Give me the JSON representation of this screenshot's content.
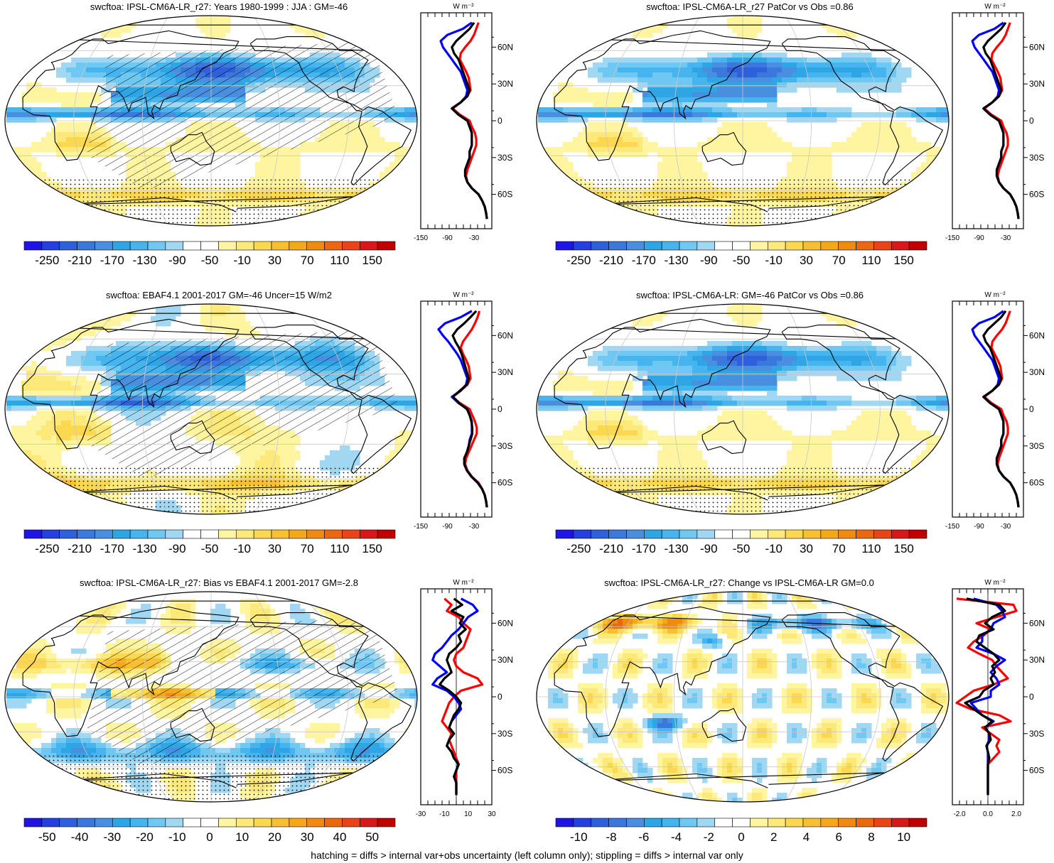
{
  "footer": "hatching = diffs > internal var+obs uncertainty (left column only); stippling = diffs > internal var only",
  "zonal_unit": "W m⁻²",
  "lat_ticks": [
    "60N",
    "30N",
    "0",
    "30S",
    "60S"
  ],
  "colors": {
    "model_line": "#000000",
    "obs_line": "#ff0000",
    "ref_line": "#0000ff",
    "coast": "#000000",
    "grid": "#c8c8c8"
  },
  "colorbar_mean": {
    "labels": [
      "-250",
      "-210",
      "-170",
      "-130",
      "-90",
      "-50",
      "-10",
      "30",
      "70",
      "110",
      "150"
    ],
    "palette": [
      "#1e14e6",
      "#2440e0",
      "#2e60dc",
      "#3a78dc",
      "#4a8ee0",
      "#2ea6e6",
      "#46b4ee",
      "#6ec8f2",
      "#a0d8f4",
      "#ffffff",
      "#ffffff",
      "#fff5a0",
      "#fde87a",
      "#fbd850",
      "#f8c030",
      "#f5a818",
      "#f08a10",
      "#ec6810",
      "#e84418",
      "#d81818",
      "#c00000"
    ]
  },
  "colorbar_bias": {
    "labels": [
      "-50",
      "-40",
      "-30",
      "-20",
      "-10",
      "0",
      "10",
      "20",
      "30",
      "40",
      "50"
    ],
    "palette": [
      "#1e14e6",
      "#2440e0",
      "#2e60dc",
      "#3a78dc",
      "#4a8ee0",
      "#2ea6e6",
      "#46b4ee",
      "#6ec8f2",
      "#a0d8f4",
      "#ffffff",
      "#ffffff",
      "#fff5a0",
      "#fde87a",
      "#fbd850",
      "#f8c030",
      "#f5a818",
      "#f08a10",
      "#ec6810",
      "#e84418",
      "#d81818",
      "#c00000"
    ]
  },
  "colorbar_change": {
    "labels": [
      "-10",
      "-8",
      "-6",
      "-4",
      "-2",
      "0",
      "2",
      "4",
      "6",
      "8",
      "10"
    ],
    "palette": [
      "#1e14e6",
      "#2440e0",
      "#2e60dc",
      "#3a78dc",
      "#4a8ee0",
      "#2ea6e6",
      "#46b4ee",
      "#6ec8f2",
      "#a0d8f4",
      "#ffffff",
      "#ffffff",
      "#fff5a0",
      "#fde87a",
      "#fbd850",
      "#f8c030",
      "#f5a818",
      "#f08a10",
      "#ec6810",
      "#e84418",
      "#d81818",
      "#c00000"
    ]
  },
  "chart_data": [
    {
      "type": "heatmap",
      "title": "swcftoa: IPSL-CM6A-LR_r27: Years 1980-1999 : JJA : GM=-46",
      "map_style": "mean",
      "zonal": {
        "x_ticks": [
          "-150",
          "-90",
          "-30"
        ],
        "xlim": [
          -150,
          10
        ],
        "lat": [
          80,
          75,
          70,
          65,
          60,
          55,
          50,
          45,
          40,
          35,
          30,
          25,
          20,
          15,
          10,
          5,
          0,
          -5,
          -10,
          -15,
          -20,
          -25,
          -30,
          -35,
          -40,
          -45,
          -50,
          -55,
          -60,
          -65,
          -70,
          -75,
          -80
        ],
        "series": [
          {
            "color": "black",
            "values": [
              -30,
              -40,
              -55,
              -70,
              -80,
              -75,
              -65,
              -60,
              -55,
              -50,
              -45,
              -40,
              -45,
              -60,
              -80,
              -65,
              -45,
              -40,
              -35,
              -35,
              -35,
              -40,
              -40,
              -45,
              -50,
              -50,
              -45,
              -35,
              -20,
              -12,
              -6,
              -3,
              -1
            ]
          },
          {
            "color": "red",
            "values": [
              -20,
              -25,
              -30,
              -38,
              -50,
              -60,
              -62,
              -55,
              -48,
              -42,
              -40,
              -38,
              -45,
              -60,
              -78,
              -62,
              -40,
              -35,
              -28,
              -25,
              -25,
              -30,
              -35,
              -40,
              -45,
              -48,
              -45,
              -35,
              -20,
              -12,
              -6,
              -3,
              -1
            ]
          },
          {
            "color": "blue",
            "values": [
              -35,
              -55,
              -90,
              -105,
              -100,
              -90,
              -80,
              -70,
              -60,
              -55,
              -50,
              -45,
              -48,
              -60,
              -80,
              -65,
              -45,
              -40,
              -35,
              -35,
              -35,
              -40,
              -40,
              -45,
              -50,
              -50,
              -45,
              -35,
              -20,
              -12,
              -6,
              -3,
              -1
            ]
          }
        ]
      }
    },
    {
      "type": "heatmap",
      "title": "swcftoa: IPSL-CM6A-LR_r27 PatCor vs Obs =0.86",
      "map_style": "mean2",
      "zonal": {
        "x_ticks": [
          "-150",
          "-90",
          "-30"
        ],
        "xlim": [
          -150,
          10
        ],
        "lat": [
          80,
          75,
          70,
          65,
          60,
          55,
          50,
          45,
          40,
          35,
          30,
          25,
          20,
          15,
          10,
          5,
          0,
          -5,
          -10,
          -15,
          -20,
          -25,
          -30,
          -35,
          -40,
          -45,
          -50,
          -55,
          -60,
          -65,
          -70,
          -75,
          -80
        ],
        "series": [
          {
            "color": "black",
            "values": [
              -30,
              -40,
              -55,
              -70,
              -80,
              -75,
              -65,
              -60,
              -55,
              -50,
              -45,
              -40,
              -45,
              -60,
              -80,
              -65,
              -45,
              -40,
              -35,
              -35,
              -35,
              -40,
              -40,
              -45,
              -50,
              -50,
              -45,
              -35,
              -20,
              -12,
              -6,
              -3,
              -1
            ]
          },
          {
            "color": "red",
            "values": [
              -20,
              -25,
              -30,
              -38,
              -50,
              -60,
              -62,
              -55,
              -48,
              -42,
              -40,
              -38,
              -45,
              -60,
              -78,
              -62,
              -40,
              -35,
              -28,
              -25,
              -25,
              -30,
              -35,
              -40,
              -45,
              -48,
              -45,
              -35,
              -20,
              -12,
              -6,
              -3,
              -1
            ]
          },
          {
            "color": "blue",
            "values": [
              -35,
              -55,
              -90,
              -105,
              -100,
              -90,
              -80,
              -70,
              -60,
              -55,
              -50,
              -45,
              -48,
              -60,
              -80,
              -65,
              -45,
              -40,
              -35,
              -35,
              -35,
              -40,
              -40,
              -45,
              -50,
              -50,
              -45,
              -35,
              -20,
              -12,
              -6,
              -3,
              -1
            ]
          }
        ]
      }
    },
    {
      "type": "heatmap",
      "title": "swcftoa: EBAF4.1 2001-2017 GM=-46 Uncer=15 W/m2",
      "map_style": "obs",
      "zonal": {
        "x_ticks": [
          "-150",
          "-90",
          "-30"
        ],
        "xlim": [
          -150,
          10
        ],
        "lat": [
          80,
          75,
          70,
          65,
          60,
          55,
          50,
          45,
          40,
          35,
          30,
          25,
          20,
          15,
          10,
          5,
          0,
          -5,
          -10,
          -15,
          -20,
          -25,
          -30,
          -35,
          -40,
          -45,
          -50,
          -55,
          -60,
          -65,
          -70,
          -75,
          -80
        ],
        "series": [
          {
            "color": "black",
            "values": [
              -25,
              -38,
              -52,
              -68,
              -78,
              -72,
              -64,
              -58,
              -54,
              -50,
              -46,
              -42,
              -46,
              -62,
              -78,
              -64,
              -46,
              -40,
              -36,
              -34,
              -34,
              -38,
              -42,
              -46,
              -52,
              -52,
              -46,
              -36,
              -22,
              -12,
              -6,
              -3,
              -1
            ]
          },
          {
            "color": "red",
            "values": [
              -18,
              -22,
              -28,
              -35,
              -45,
              -55,
              -60,
              -55,
              -48,
              -42,
              -40,
              -38,
              -45,
              -60,
              -78,
              -62,
              -40,
              -34,
              -28,
              -24,
              -24,
              -30,
              -36,
              -42,
              -48,
              -50,
              -45,
              -35,
              -20,
              -12,
              -6,
              -3,
              -1
            ]
          },
          {
            "color": "blue",
            "values": [
              -35,
              -60,
              -95,
              -110,
              -100,
              -88,
              -78,
              -68,
              -60,
              -55,
              -50,
              -45,
              -48,
              -60,
              -80,
              -65,
              -45,
              -40,
              -35,
              -35,
              -35,
              -40,
              -42,
              -46,
              -52,
              -52,
              -46,
              -36,
              -22,
              -12,
              -6,
              -3,
              -1
            ]
          }
        ]
      }
    },
    {
      "type": "heatmap",
      "title": "swcftoa: IPSL-CM6A-LR: GM=-46 PatCor vs Obs =0.86",
      "map_style": "mean2",
      "zonal": {
        "x_ticks": [
          "-150",
          "-90",
          "-30"
        ],
        "xlim": [
          -150,
          10
        ],
        "lat": [
          80,
          75,
          70,
          65,
          60,
          55,
          50,
          45,
          40,
          35,
          30,
          25,
          20,
          15,
          10,
          5,
          0,
          -5,
          -10,
          -15,
          -20,
          -25,
          -30,
          -35,
          -40,
          -45,
          -50,
          -55,
          -60,
          -65,
          -70,
          -75,
          -80
        ],
        "series": [
          {
            "color": "black",
            "values": [
              -30,
              -40,
              -55,
              -70,
              -80,
              -75,
              -65,
              -60,
              -55,
              -50,
              -45,
              -40,
              -45,
              -60,
              -80,
              -65,
              -45,
              -40,
              -35,
              -35,
              -35,
              -40,
              -40,
              -45,
              -50,
              -50,
              -45,
              -35,
              -20,
              -12,
              -6,
              -3,
              -1
            ]
          },
          {
            "color": "red",
            "values": [
              -20,
              -25,
              -30,
              -38,
              -50,
              -60,
              -62,
              -55,
              -48,
              -42,
              -40,
              -38,
              -45,
              -60,
              -78,
              -62,
              -40,
              -35,
              -28,
              -25,
              -25,
              -30,
              -35,
              -40,
              -45,
              -48,
              -45,
              -35,
              -20,
              -12,
              -6,
              -3,
              -1
            ]
          },
          {
            "color": "blue",
            "values": [
              -35,
              -55,
              -90,
              -105,
              -100,
              -90,
              -80,
              -70,
              -60,
              -55,
              -50,
              -45,
              -48,
              -60,
              -80,
              -65,
              -45,
              -40,
              -35,
              -35,
              -35,
              -40,
              -40,
              -45,
              -50,
              -50,
              -45,
              -35,
              -20,
              -12,
              -6,
              -3,
              -1
            ]
          }
        ]
      }
    },
    {
      "type": "heatmap",
      "title": "swcftoa: IPSL-CM6A-LR_r27: Bias vs EBAF4.1 2001-2017 GM=-2.8",
      "map_style": "bias",
      "zonal": {
        "x_ticks": [
          "-30",
          "-10",
          "10",
          "30"
        ],
        "xlim": [
          -30,
          30
        ],
        "lat": [
          80,
          75,
          70,
          65,
          60,
          55,
          50,
          45,
          40,
          35,
          30,
          25,
          20,
          15,
          10,
          5,
          0,
          -5,
          -10,
          -15,
          -20,
          -25,
          -30,
          -35,
          -40,
          -45,
          -50,
          -55,
          -60,
          -65,
          -70,
          -75,
          -80
        ],
        "series": [
          {
            "color": "black",
            "values": [
              -2,
              5,
              -4,
              6,
              3,
              8,
              2,
              4,
              0,
              -6,
              -8,
              -6,
              -4,
              -10,
              -14,
              -6,
              0,
              4,
              2,
              -2,
              -4,
              -6,
              -2,
              -6,
              -8,
              -4,
              -2,
              2,
              0,
              -2,
              0,
              0,
              0
            ]
          },
          {
            "color": "red",
            "values": [
              -10,
              -4,
              -8,
              2,
              6,
              12,
              10,
              8,
              6,
              0,
              -2,
              0,
              6,
              18,
              22,
              4,
              -2,
              -6,
              -8,
              -10,
              -12,
              -8,
              -4,
              -6,
              -4,
              -2,
              0,
              2,
              0,
              0,
              0,
              0,
              0
            ]
          },
          {
            "color": "blue",
            "values": [
              4,
              14,
              18,
              10,
              6,
              2,
              -4,
              -8,
              -12,
              -18,
              -20,
              -14,
              -8,
              -16,
              -20,
              -8,
              -2,
              2,
              4,
              0,
              -4,
              -6,
              -2,
              -6,
              -8,
              -4,
              -2,
              2,
              0,
              -2,
              0,
              0,
              0
            ]
          }
        ]
      }
    },
    {
      "type": "heatmap",
      "title": "swcftoa: IPSL-CM6A-LR_r27: Change vs IPSL-CM6A-LR GM=0.0",
      "map_style": "change",
      "zonal": {
        "x_ticks": [
          "-2.0",
          "0.0",
          "2.0"
        ],
        "xlim": [
          -2.5,
          2.5
        ],
        "lat": [
          80,
          75,
          70,
          65,
          60,
          55,
          50,
          45,
          40,
          35,
          30,
          25,
          20,
          15,
          10,
          5,
          0,
          -5,
          -10,
          -15,
          -20,
          -25,
          -30,
          -35,
          -40,
          -45,
          -50,
          -55,
          -60,
          -65,
          -70,
          -75,
          -80
        ],
        "series": [
          {
            "color": "black",
            "values": [
              -1.5,
              0.8,
              1.2,
              0.3,
              -0.2,
              0.4,
              -0.6,
              -0.8,
              -0.2,
              0.4,
              0.8,
              0.3,
              0.5,
              0.2,
              0.4,
              -0.3,
              -0.6,
              -1.6,
              -1.0,
              -0.4,
              0.3,
              -0.2,
              0.1,
              0.2,
              -0.1,
              0,
              0.1,
              0,
              0,
              0,
              0,
              0,
              0
            ]
          },
          {
            "color": "red",
            "values": [
              -2.2,
              1.8,
              2.0,
              0.6,
              -0.8,
              0.2,
              -0.3,
              -1.0,
              -1.4,
              -0.6,
              0.3,
              0.6,
              1.0,
              1.4,
              0.4,
              -1.0,
              -1.6,
              -2.2,
              -1.2,
              0.8,
              1.6,
              -0.4,
              0.2,
              0.8,
              0.6,
              0.8,
              0.4,
              0,
              0,
              0,
              0,
              0,
              0
            ]
          },
          {
            "color": "blue",
            "values": [
              -1.0,
              0.6,
              1.0,
              1.2,
              0.4,
              0.2,
              -0.4,
              -0.4,
              -0.8,
              0.4,
              1.2,
              0.6,
              0.2,
              0.6,
              0.8,
              0.2,
              0.2,
              -1.2,
              -0.8,
              -0.4,
              0.4,
              -0.2,
              0.1,
              0.1,
              -0.1,
              0,
              0,
              0,
              0,
              0,
              0,
              0,
              0
            ]
          }
        ]
      }
    }
  ]
}
